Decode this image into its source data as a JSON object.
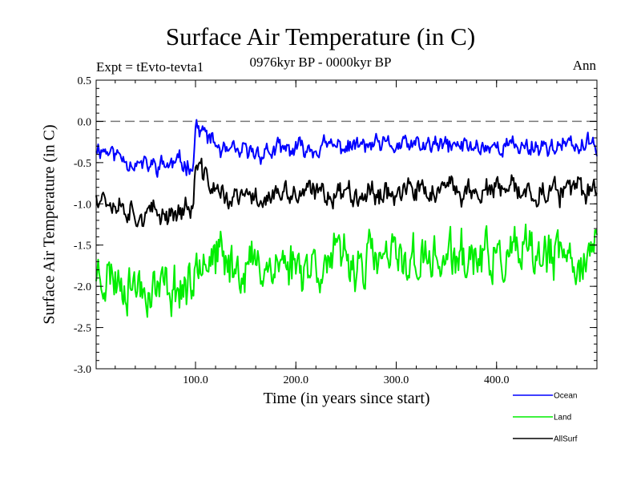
{
  "chart_data": {
    "type": "line",
    "title": "Surface Air Temperature (in C)",
    "subtitle": "0976kyr BP - 0000kyr BP",
    "experiment": "Expt = tEvto-tevta1",
    "season": "Ann",
    "xlabel": "Time (in years since start)",
    "ylabel": "Surface Air Temperature (in C)",
    "xlim": [
      1,
      500
    ],
    "ylim": [
      -3.0,
      0.5
    ],
    "xticks": [
      100,
      200,
      300,
      400
    ],
    "xtick_labels": [
      "100.0",
      "200.0",
      "300.0",
      "400.0"
    ],
    "yticks": [
      0.5,
      0.0,
      -0.5,
      -1.0,
      -1.5,
      -2.0,
      -2.5,
      -3.0
    ],
    "ytick_labels": [
      "0.5",
      "0.0",
      "-0.5",
      "-1.0",
      "-1.5",
      "-2.0",
      "-2.5",
      "-3.0"
    ],
    "reference_line": 0.0,
    "series": [
      {
        "name": "Ocean",
        "color": "#0000ff",
        "approx_mean": [
          [
            1,
            -0.3
          ],
          [
            50,
            -0.55
          ],
          [
            98,
            -0.5
          ],
          [
            100,
            -0.05
          ],
          [
            130,
            -0.4
          ],
          [
            250,
            -0.3
          ],
          [
            500,
            -0.3
          ]
        ],
        "noise": 0.11,
        "seed": 11
      },
      {
        "name": "Land",
        "color": "#00ee00",
        "approx_mean": [
          [
            1,
            -1.8
          ],
          [
            50,
            -2.0
          ],
          [
            98,
            -2.0
          ],
          [
            100,
            -1.5
          ],
          [
            130,
            -1.75
          ],
          [
            250,
            -1.7
          ],
          [
            500,
            -1.65
          ]
        ],
        "noise": 0.28,
        "seed": 23
      },
      {
        "name": "AllSurf",
        "color": "#000000",
        "approx_mean": [
          [
            1,
            -0.85
          ],
          [
            50,
            -1.15
          ],
          [
            98,
            -1.05
          ],
          [
            100,
            -0.55
          ],
          [
            130,
            -0.95
          ],
          [
            250,
            -0.85
          ],
          [
            500,
            -0.85
          ]
        ],
        "noise": 0.14,
        "seed": 37
      }
    ]
  }
}
